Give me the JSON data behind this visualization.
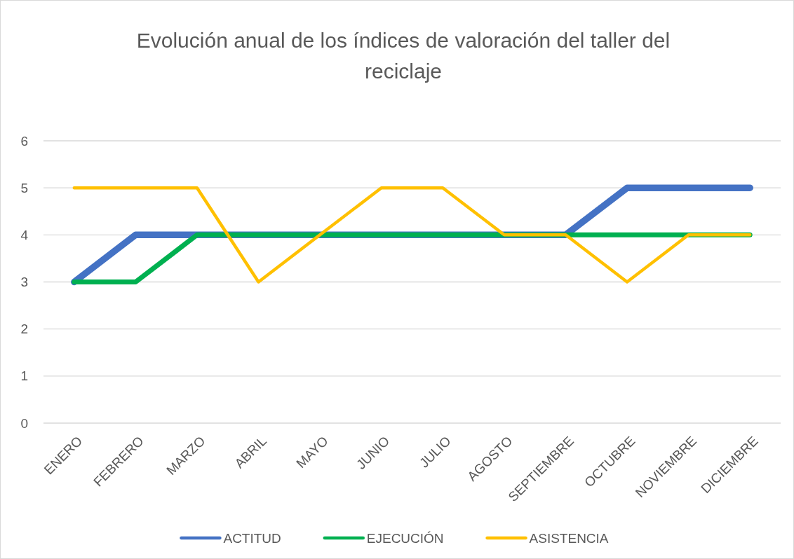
{
  "chart_data": {
    "type": "line",
    "title": "Evolución anual de los índices de valoración del taller del reciclaje",
    "categories": [
      "ENERO",
      "FEBRERO",
      "MARZO",
      "ABRIL",
      "MAYO",
      "JUNIO",
      "JULIO",
      "AGOSTO",
      "SEPTIEMBRE",
      "OCTUBRE",
      "NOVIEMBRE",
      "DICIEMBRE"
    ],
    "series": [
      {
        "name": "ACTITUD",
        "color": "#4472c4",
        "values": [
          3,
          4,
          4,
          4,
          4,
          4,
          4,
          4,
          4,
          5,
          5,
          5
        ]
      },
      {
        "name": "EJECUCIÓN",
        "color": "#00b050",
        "values": [
          3,
          3,
          4,
          4,
          4,
          4,
          4,
          4,
          4,
          4,
          4,
          4
        ]
      },
      {
        "name": "ASISTENCIA",
        "color": "#ffc000",
        "values": [
          5,
          5,
          5,
          3,
          4,
          5,
          5,
          4,
          4,
          3,
          4,
          4
        ]
      }
    ],
    "ylim": [
      0,
      6
    ],
    "yticks": [
      0,
      1,
      2,
      3,
      4,
      5,
      6
    ],
    "grid": "y",
    "legend": "bottom",
    "marker": "none",
    "line_style": "solid"
  }
}
